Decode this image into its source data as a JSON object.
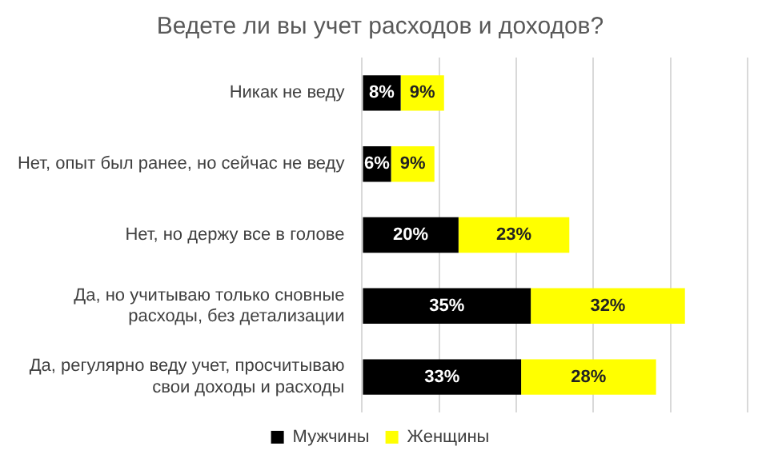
{
  "chart_data": {
    "type": "bar",
    "orientation": "horizontal",
    "stacked": true,
    "title": "Ведете ли вы учет расходов и доходов?",
    "categories": [
      "Никак не веду",
      "Нет, опыт был ранее, но сейчас не веду",
      "Нет, но держу все в голове",
      "Да, но учитываю только сновные расходы, без детализации",
      "Да, регулярно веду учет, просчитываю свои доходы и расходы"
    ],
    "series": [
      {
        "name": "Мужчины",
        "color": "#000000",
        "values": [
          8,
          6,
          20,
          35,
          33
        ],
        "value_labels": [
          "8%",
          "6%",
          "20%",
          "35%",
          "33%"
        ]
      },
      {
        "name": "Женщины",
        "color": "#ffff00",
        "values": [
          9,
          9,
          23,
          32,
          28
        ],
        "value_labels": [
          "9%",
          "9%",
          "23%",
          "32%",
          "28%"
        ]
      }
    ],
    "grid": "x",
    "legend": "bottom"
  }
}
